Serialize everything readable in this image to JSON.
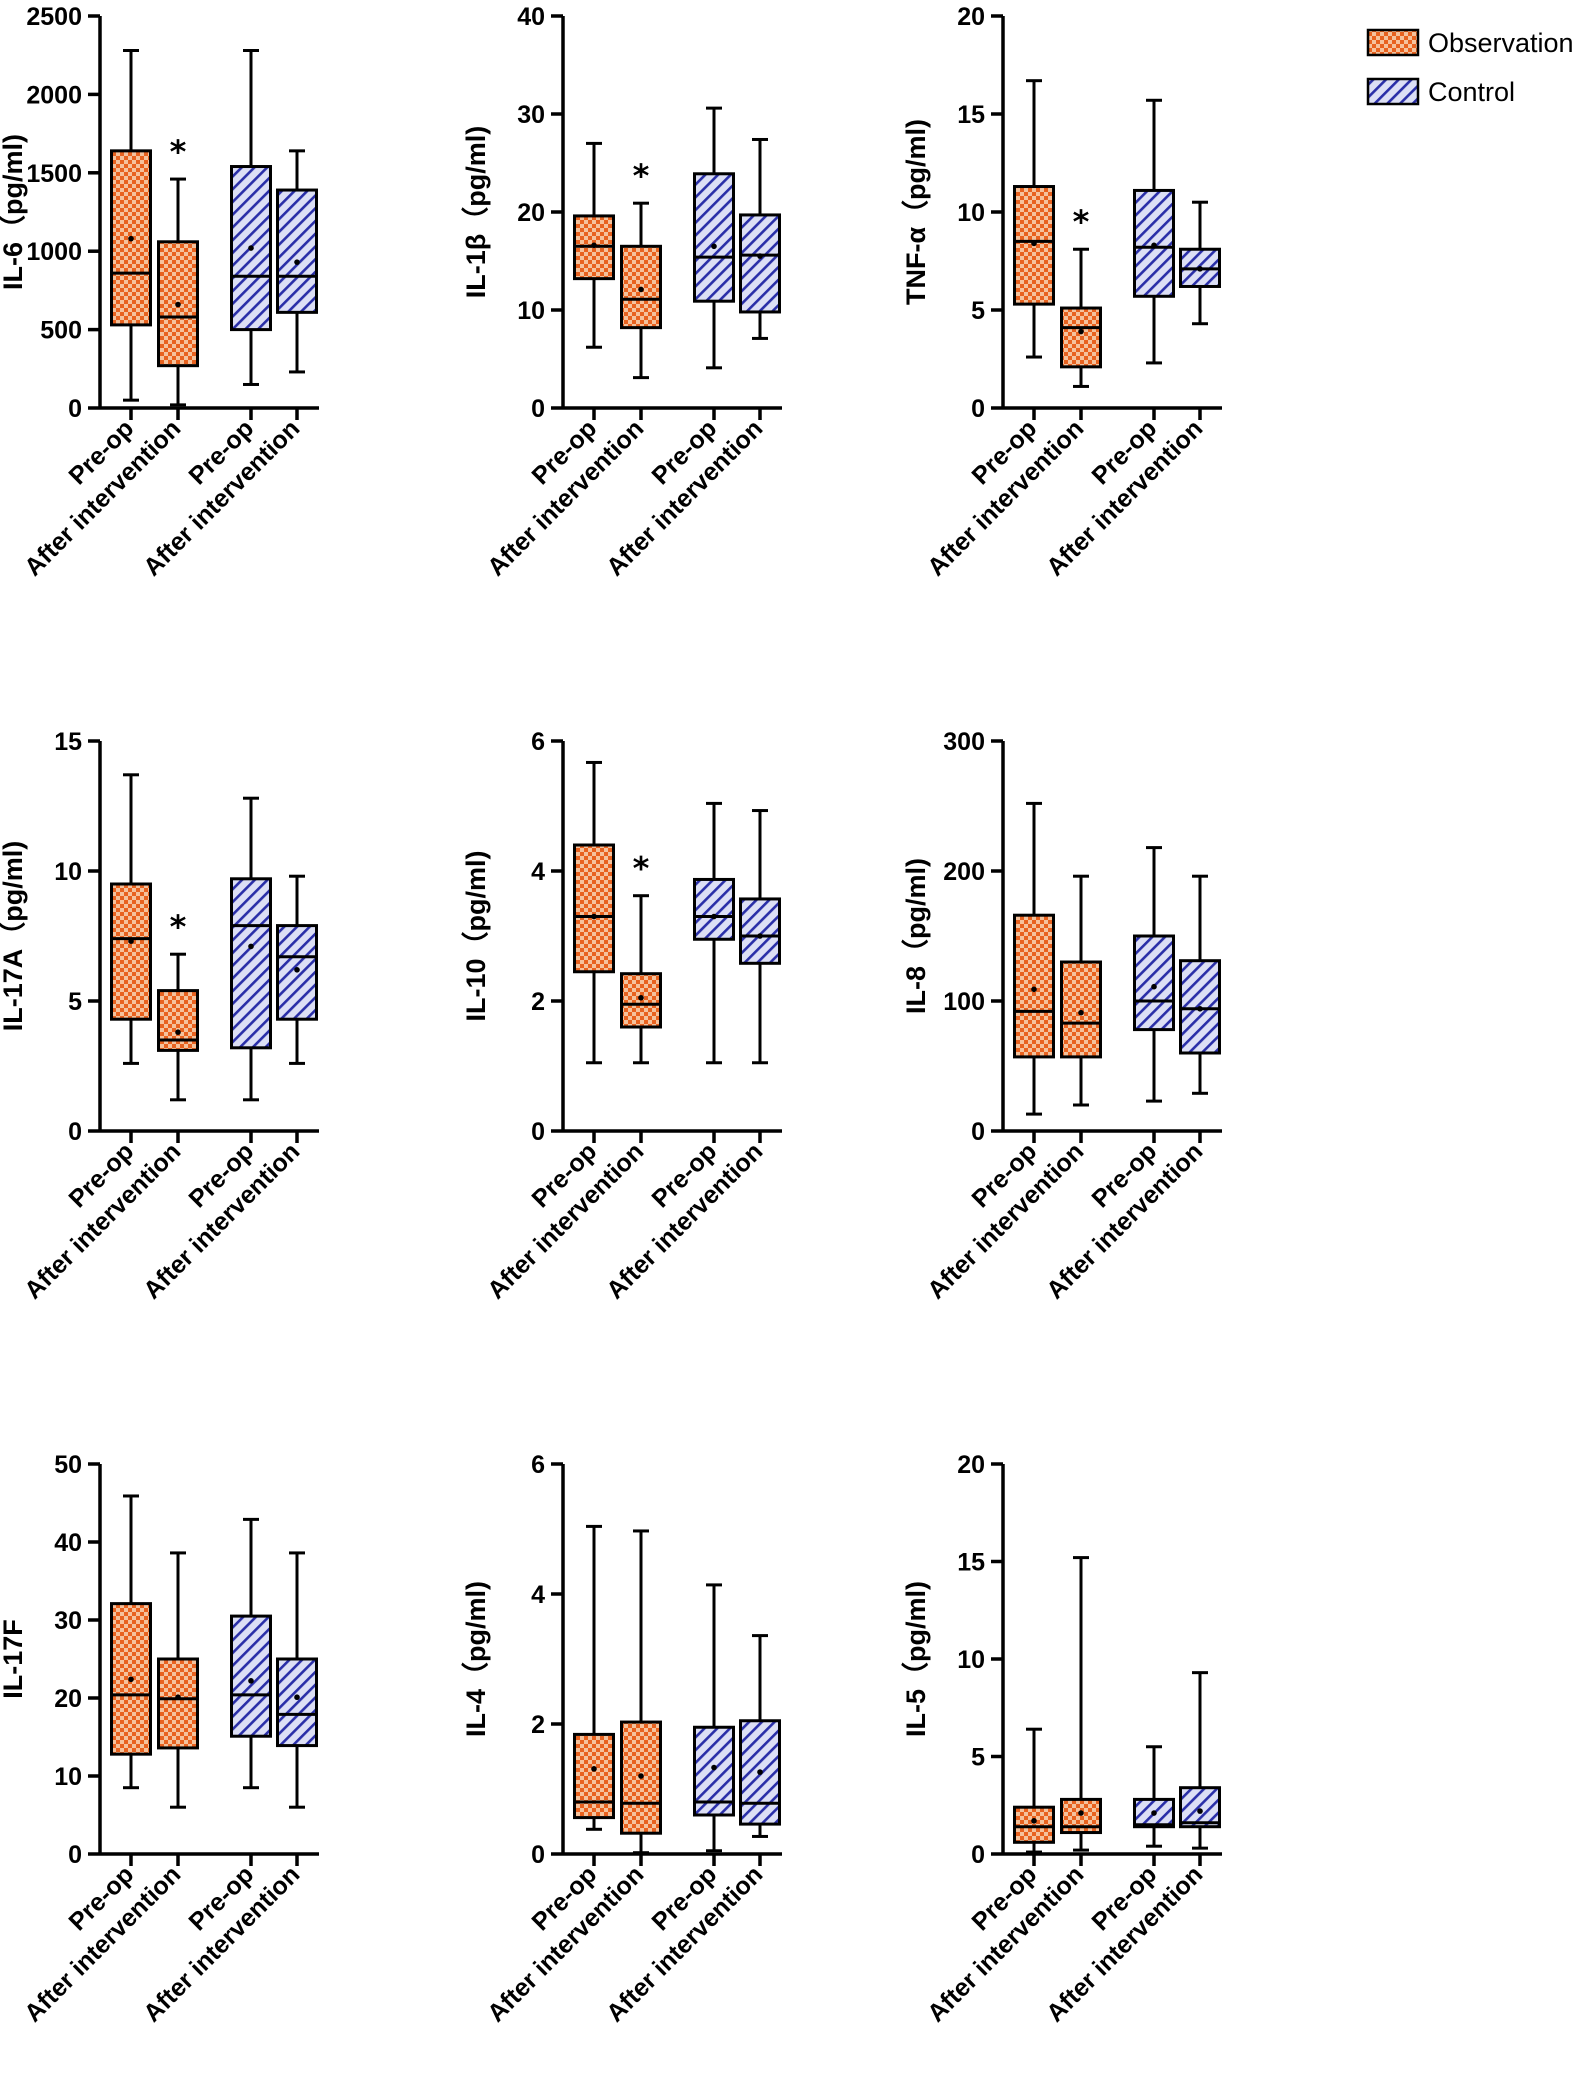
{
  "colors": {
    "observation_fill": "#f4b68a",
    "observation_pattern": "#e8581f",
    "control_fill": "#d2d5f2",
    "control_pattern": "#2a2fa8",
    "stroke": "#000000"
  },
  "legend": [
    {
      "name": "Observation",
      "pattern": "observation"
    },
    {
      "name": "Control",
      "pattern": "control"
    }
  ],
  "chart_data": [
    {
      "type": "box",
      "ylabel": "IL-6（pg/ml)",
      "ylim": [
        0,
        2500
      ],
      "ticks": [
        "0",
        "500",
        "1000",
        "1500",
        "2000",
        "2500"
      ],
      "categories": [
        "Pre-op",
        "After intervention",
        "Pre-op",
        "After intervention"
      ],
      "groups": [
        "Observation",
        "Observation",
        "Control",
        "Control"
      ],
      "boxes": [
        {
          "min": 50,
          "q1": 530,
          "median": 860,
          "q3": 1640,
          "max": 2280,
          "mean": 1080
        },
        {
          "min": 20,
          "q1": 270,
          "median": 580,
          "q3": 1060,
          "max": 1460,
          "mean": 660,
          "significant": true
        },
        {
          "min": 150,
          "q1": 500,
          "median": 840,
          "q3": 1540,
          "max": 2280,
          "mean": 1020
        },
        {
          "min": 230,
          "q1": 610,
          "median": 840,
          "q3": 1390,
          "max": 1640,
          "mean": 930
        }
      ]
    },
    {
      "type": "box",
      "ylabel": "IL-1β（pg/ml)",
      "ylim": [
        0,
        40
      ],
      "ticks": [
        "0",
        "10",
        "20",
        "30",
        "40"
      ],
      "categories": [
        "Pre-op",
        "After intervention",
        "Pre-op",
        "After intervention"
      ],
      "groups": [
        "Observation",
        "Observation",
        "Control",
        "Control"
      ],
      "boxes": [
        {
          "min": 6.2,
          "q1": 13.2,
          "median": 16.5,
          "q3": 19.6,
          "max": 27,
          "mean": 16.6
        },
        {
          "min": 3.1,
          "q1": 8.2,
          "median": 11.1,
          "q3": 16.5,
          "max": 20.9,
          "mean": 12.1,
          "significant": true
        },
        {
          "min": 4.1,
          "q1": 10.9,
          "median": 15.4,
          "q3": 23.9,
          "max": 30.6,
          "mean": 16.5
        },
        {
          "min": 7.1,
          "q1": 9.8,
          "median": 15.6,
          "q3": 19.7,
          "max": 27.4,
          "mean": 15.5
        }
      ]
    },
    {
      "type": "box",
      "ylabel": "TNF-α（pg/ml)",
      "ylim": [
        0,
        20
      ],
      "ticks": [
        "0",
        "5",
        "10",
        "15",
        "20"
      ],
      "categories": [
        "Pre-op",
        "After intervention",
        "Pre-op",
        "After intervention"
      ],
      "groups": [
        "Observation",
        "Observation",
        "Control",
        "Control"
      ],
      "boxes": [
        {
          "min": 2.6,
          "q1": 5.3,
          "median": 8.5,
          "q3": 11.3,
          "max": 16.7,
          "mean": 8.4
        },
        {
          "min": 1.1,
          "q1": 2.1,
          "median": 4.1,
          "q3": 5.1,
          "max": 8.1,
          "mean": 3.9,
          "significant": true
        },
        {
          "min": 2.3,
          "q1": 5.7,
          "median": 8.2,
          "q3": 11.1,
          "max": 15.7,
          "mean": 8.3
        },
        {
          "min": 4.3,
          "q1": 6.2,
          "median": 7.1,
          "q3": 8.1,
          "max": 10.5,
          "mean": 7.1
        }
      ]
    },
    {
      "type": "box",
      "ylabel": "IL-17A（pg/ml)",
      "ylim": [
        0,
        15
      ],
      "ticks": [
        "0",
        "5",
        "10",
        "15"
      ],
      "categories": [
        "Pre-op",
        "After intervention",
        "Pre-op",
        "After intervention"
      ],
      "groups": [
        "Observation",
        "Observation",
        "Control",
        "Control"
      ],
      "boxes": [
        {
          "min": 2.6,
          "q1": 4.3,
          "median": 7.4,
          "q3": 9.5,
          "max": 13.7,
          "mean": 7.3
        },
        {
          "min": 1.2,
          "q1": 3.1,
          "median": 3.5,
          "q3": 5.4,
          "max": 6.8,
          "mean": 3.8,
          "significant": true
        },
        {
          "min": 1.2,
          "q1": 3.2,
          "median": 7.9,
          "q3": 9.7,
          "max": 12.8,
          "mean": 7.1
        },
        {
          "min": 2.6,
          "q1": 4.3,
          "median": 6.7,
          "q3": 7.9,
          "max": 9.8,
          "mean": 6.2
        }
      ]
    },
    {
      "type": "box",
      "ylabel": "IL-10（pg/ml)",
      "ylim": [
        0,
        6
      ],
      "ticks": [
        "0",
        "2",
        "4",
        "6"
      ],
      "categories": [
        "Pre-op",
        "After intervention",
        "Pre-op",
        "After intervention"
      ],
      "groups": [
        "Observation",
        "Observation",
        "Control",
        "Control"
      ],
      "boxes": [
        {
          "min": 1.05,
          "q1": 2.45,
          "median": 3.3,
          "q3": 4.4,
          "max": 5.67,
          "mean": 3.3
        },
        {
          "min": 1.05,
          "q1": 1.6,
          "median": 1.95,
          "q3": 2.42,
          "max": 3.62,
          "mean": 2.05,
          "significant": true
        },
        {
          "min": 1.05,
          "q1": 2.95,
          "median": 3.3,
          "q3": 3.87,
          "max": 5.04,
          "mean": 3.3
        },
        {
          "min": 1.05,
          "q1": 2.58,
          "median": 3.0,
          "q3": 3.57,
          "max": 4.93,
          "mean": 3.0
        }
      ]
    },
    {
      "type": "box",
      "ylabel": "IL-8（pg/ml)",
      "ylim": [
        0,
        300
      ],
      "ticks": [
        "0",
        "100",
        "200",
        "300"
      ],
      "categories": [
        "Pre-op",
        "After intervention",
        "Pre-op",
        "After intervention"
      ],
      "groups": [
        "Observation",
        "Observation",
        "Control",
        "Control"
      ],
      "boxes": [
        {
          "min": 13,
          "q1": 57,
          "median": 92,
          "q3": 166,
          "max": 252,
          "mean": 109
        },
        {
          "min": 20,
          "q1": 57,
          "median": 83,
          "q3": 130,
          "max": 196,
          "mean": 91
        },
        {
          "min": 23,
          "q1": 78,
          "median": 100,
          "q3": 150,
          "max": 218,
          "mean": 111
        },
        {
          "min": 29,
          "q1": 60,
          "median": 94,
          "q3": 131,
          "max": 196,
          "mean": 94
        }
      ]
    },
    {
      "type": "box",
      "ylabel": "IL-17F",
      "ylim": [
        0,
        50
      ],
      "ticks": [
        "0",
        "10",
        "20",
        "30",
        "40",
        "50"
      ],
      "categories": [
        "Pre-op",
        "After intervention",
        "Pre-op",
        "After intervention"
      ],
      "groups": [
        "Observation",
        "Observation",
        "Control",
        "Control"
      ],
      "boxes": [
        {
          "min": 8.5,
          "q1": 12.8,
          "median": 20.4,
          "q3": 32.1,
          "max": 45.9,
          "mean": 22.4
        },
        {
          "min": 6.0,
          "q1": 13.6,
          "median": 19.9,
          "q3": 25.0,
          "max": 38.6,
          "mean": 20.1
        },
        {
          "min": 8.5,
          "q1": 15.1,
          "median": 20.4,
          "q3": 30.5,
          "max": 42.9,
          "mean": 22.2
        },
        {
          "min": 6.0,
          "q1": 13.9,
          "median": 17.9,
          "q3": 25.0,
          "max": 38.6,
          "mean": 20.1
        }
      ]
    },
    {
      "type": "box",
      "ylabel": "IL-4（pg/ml)",
      "ylim": [
        0,
        6
      ],
      "ticks": [
        "0",
        "2",
        "4",
        "6"
      ],
      "categories": [
        "Pre-op",
        "After intervention",
        "Pre-op",
        "After intervention"
      ],
      "groups": [
        "Observation",
        "Observation",
        "Control",
        "Control"
      ],
      "boxes": [
        {
          "min": 0.38,
          "q1": 0.56,
          "median": 0.8,
          "q3": 1.84,
          "max": 5.04,
          "mean": 1.31
        },
        {
          "min": 0.02,
          "q1": 0.32,
          "median": 0.78,
          "q3": 2.03,
          "max": 4.97,
          "mean": 1.2
        },
        {
          "min": 0.05,
          "q1": 0.6,
          "median": 0.8,
          "q3": 1.95,
          "max": 4.14,
          "mean": 1.33
        },
        {
          "min": 0.27,
          "q1": 0.46,
          "median": 0.78,
          "q3": 2.05,
          "max": 3.36,
          "mean": 1.26
        }
      ]
    },
    {
      "type": "box",
      "ylabel": "IL-5（pg/ml)",
      "ylim": [
        0,
        20
      ],
      "ticks": [
        "0",
        "5",
        "10",
        "15",
        "20"
      ],
      "categories": [
        "Pre-op",
        "After intervention",
        "Pre-op",
        "After intervention"
      ],
      "groups": [
        "Observation",
        "Observation",
        "Control",
        "Control"
      ],
      "boxes": [
        {
          "min": 0.1,
          "q1": 0.6,
          "median": 1.4,
          "q3": 2.4,
          "max": 6.4,
          "mean": 1.7
        },
        {
          "min": 0.2,
          "q1": 1.1,
          "median": 1.4,
          "q3": 2.8,
          "max": 15.2,
          "mean": 2.1
        },
        {
          "min": 0.4,
          "q1": 1.4,
          "median": 1.5,
          "q3": 2.8,
          "max": 5.5,
          "mean": 2.1
        },
        {
          "min": 0.3,
          "q1": 1.4,
          "median": 1.6,
          "q3": 3.4,
          "max": 9.3,
          "mean": 2.2
        }
      ]
    }
  ]
}
